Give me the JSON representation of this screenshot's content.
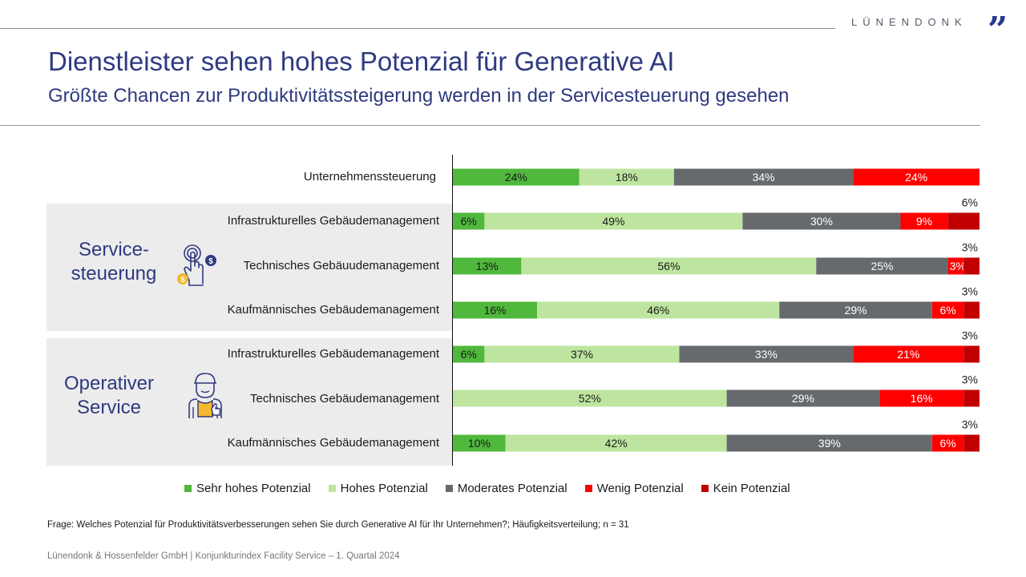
{
  "header": {
    "brand": "LÜNENDONK",
    "brand_mark": "”",
    "title": "Dienstleister sehen hohes Potenzial für Generative AI",
    "subtitle": "Größte Chancen zur Produktivitätssteigerung werden in der Servicesteuerung gesehen"
  },
  "groups": [
    {
      "title_line1": "Service-",
      "title_line2": "steuerung",
      "icon": "hand-tap-coins-icon"
    },
    {
      "title_line1": "Operativer",
      "title_line2": "Service",
      "icon": "worker-thumbs-up-icon"
    }
  ],
  "colors": {
    "sehr_hoch": "#50b83c",
    "hoch": "#bde59f",
    "moderat": "#666a6d",
    "wenig": "#ff0000",
    "kein": "#c00000",
    "accent": "#2e3a80"
  },
  "chart_data": {
    "type": "bar",
    "orientation": "horizontal",
    "stacked": true,
    "normalized": true,
    "title": "Dienstleister sehen hohes Potenzial für Generative AI",
    "xlabel": "",
    "ylabel": "",
    "xlim": [
      0,
      100
    ],
    "unit": "%",
    "legend_position": "bottom",
    "categories": [
      "Unternehmenssteuerung",
      "Infrastrukturelles Gebäudemanagement",
      "Technisches Gebäuudemanagement",
      "Kaufmännisches Gebäudemanagement",
      "Infrastrukturelles Gebäudemanagement",
      "Technisches Gebäudemanagement",
      "Kaufmännisches Gebäudemanagement"
    ],
    "category_groups": [
      "",
      "Service-steuerung",
      "Service-steuerung",
      "Service-steuerung",
      "Operativer Service",
      "Operativer Service",
      "Operativer Service"
    ],
    "series": [
      {
        "key": "sehr_hoch",
        "name": "Sehr hohes Potenzial",
        "values": [
          24,
          6,
          13,
          16,
          6,
          0,
          10
        ],
        "labels": [
          "24%",
          "6%",
          "13%",
          "16%",
          "6%",
          "",
          "10%"
        ]
      },
      {
        "key": "hoch",
        "name": "Hohes Potenzial",
        "values": [
          18,
          49,
          56,
          46,
          37,
          52,
          42
        ],
        "labels": [
          "18%",
          "49%",
          "56%",
          "46%",
          "37%",
          "52%",
          "42%"
        ]
      },
      {
        "key": "moderat",
        "name": "Moderates Potenzial",
        "values": [
          34,
          30,
          25,
          29,
          33,
          29,
          39
        ],
        "labels": [
          "34%",
          "30%",
          "25%",
          "29%",
          "33%",
          "29%",
          "39%"
        ]
      },
      {
        "key": "wenig",
        "name": "Wenig Potenzial",
        "values": [
          24,
          9,
          3,
          6,
          21,
          16,
          6
        ],
        "labels": [
          "24%",
          "9%",
          "3%",
          "6%",
          "21%",
          "16%",
          "6%"
        ]
      },
      {
        "key": "kein",
        "name": "Kein Potenzial",
        "values": [
          0,
          6,
          3,
          3,
          3,
          3,
          3
        ],
        "labels": [
          "",
          "6%",
          "3%",
          "3%",
          "3%",
          "3%",
          "3%"
        ]
      }
    ]
  },
  "legend": [
    {
      "label": "Sehr hohes Potenzial",
      "key": "sehr_hoch"
    },
    {
      "label": "Hohes Potenzial",
      "key": "hoch"
    },
    {
      "label": "Moderates Potenzial",
      "key": "moderat"
    },
    {
      "label": "Wenig Potenzial",
      "key": "wenig"
    },
    {
      "label": "Kein Potenzial",
      "key": "kein"
    }
  ],
  "footnote": "Frage: Welches Potenzial für Produktivitätsverbesserungen sehen Sie durch Generative AI für Ihr Unternehmen?; Häufigkeitsverteilung; n = 31",
  "source": "Lünendonk  & Hossenfelder  GmbH | Konjunkturindex  Facility Service – 1. Quartal 2024"
}
